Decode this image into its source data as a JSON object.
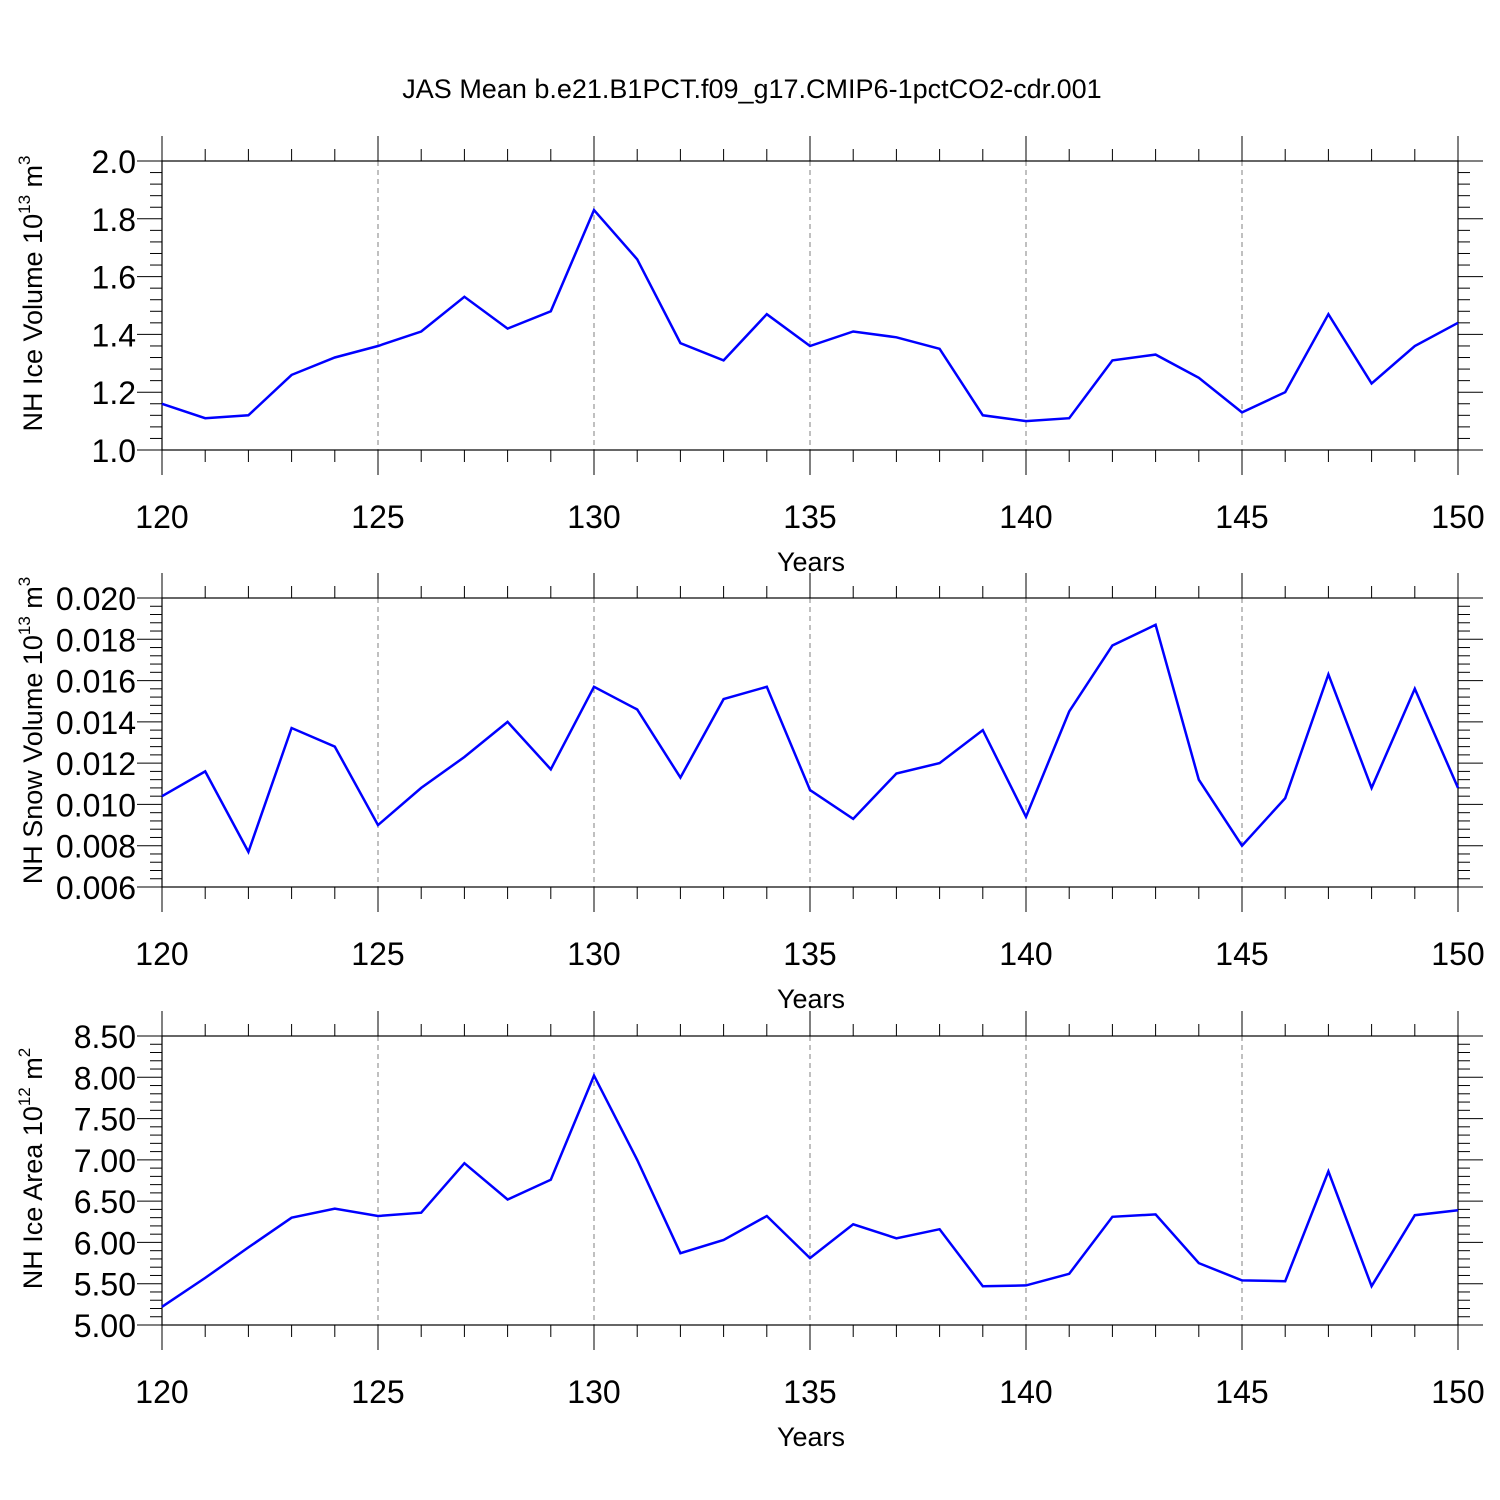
{
  "figure": {
    "title": "JAS Mean b.e21.B1PCT.f09_g17.CMIP6-1pctCO2-cdr.001"
  },
  "colors": {
    "line": "#0000ff",
    "axis": "#000000",
    "grid": "#808080"
  },
  "chart_data": [
    {
      "type": "line",
      "ylabel": {
        "base": "NH Ice Volume 10",
        "exp": "13",
        "unit": " m",
        "unit_exp": "3"
      },
      "xlabel": "Years",
      "xlim": [
        120,
        150
      ],
      "ylim": [
        1.0,
        2.0
      ],
      "x_ticks": [
        "120",
        "125",
        "130",
        "135",
        "140",
        "145",
        "150"
      ],
      "y_ticks": [
        "1.0",
        "1.2",
        "1.4",
        "1.6",
        "1.8",
        "2.0"
      ],
      "x_gridlines": [
        125,
        130,
        135,
        140,
        145
      ],
      "series": [
        {
          "x": [
            120,
            121,
            122,
            123,
            124,
            125,
            126,
            127,
            128,
            129,
            130,
            131,
            132,
            133,
            134,
            135,
            136,
            137,
            138,
            139,
            140,
            141,
            142,
            143,
            144,
            145,
            146,
            147,
            148,
            149,
            150
          ],
          "values": [
            1.16,
            1.11,
            1.12,
            1.26,
            1.32,
            1.36,
            1.41,
            1.53,
            1.42,
            1.48,
            1.83,
            1.66,
            1.37,
            1.31,
            1.47,
            1.36,
            1.41,
            1.39,
            1.35,
            1.12,
            1.1,
            1.11,
            1.31,
            1.33,
            1.25,
            1.13,
            1.2,
            1.47,
            1.23,
            1.36,
            1.44
          ]
        }
      ]
    },
    {
      "type": "line",
      "ylabel": {
        "base": "NH Snow Volume 10",
        "exp": "13",
        "unit": " m",
        "unit_exp": "3"
      },
      "xlabel": "Years",
      "xlim": [
        120,
        150
      ],
      "ylim": [
        0.006,
        0.02
      ],
      "x_ticks": [
        "120",
        "125",
        "130",
        "135",
        "140",
        "145",
        "150"
      ],
      "y_ticks": [
        "0.006",
        "0.008",
        "0.010",
        "0.012",
        "0.014",
        "0.016",
        "0.018",
        "0.020"
      ],
      "x_gridlines": [
        125,
        130,
        135,
        140,
        145
      ],
      "series": [
        {
          "x": [
            120,
            121,
            122,
            123,
            124,
            125,
            126,
            127,
            128,
            129,
            130,
            131,
            132,
            133,
            134,
            135,
            136,
            137,
            138,
            139,
            140,
            141,
            142,
            143,
            144,
            145,
            146,
            147,
            148,
            149,
            150
          ],
          "values": [
            0.0104,
            0.0116,
            0.0077,
            0.0137,
            0.0128,
            0.009,
            0.0108,
            0.0123,
            0.014,
            0.0117,
            0.0157,
            0.0146,
            0.0113,
            0.0151,
            0.0157,
            0.0107,
            0.0093,
            0.0115,
            0.012,
            0.0136,
            0.0094,
            0.0145,
            0.0177,
            0.0187,
            0.0112,
            0.008,
            0.0103,
            0.0163,
            0.0108,
            0.0156,
            0.0108
          ]
        }
      ]
    },
    {
      "type": "line",
      "ylabel": {
        "base": "NH Ice Area 10",
        "exp": "12",
        "unit": " m",
        "unit_exp": "2"
      },
      "xlabel": "Years",
      "xlim": [
        120,
        150
      ],
      "ylim": [
        5.0,
        8.5
      ],
      "x_ticks": [
        "120",
        "125",
        "130",
        "135",
        "140",
        "145",
        "150"
      ],
      "y_ticks": [
        "5.00",
        "5.50",
        "6.00",
        "6.50",
        "7.00",
        "7.50",
        "8.00",
        "8.50"
      ],
      "x_gridlines": [
        125,
        130,
        135,
        140,
        145
      ],
      "series": [
        {
          "x": [
            120,
            121,
            122,
            123,
            124,
            125,
            126,
            127,
            128,
            129,
            130,
            131,
            132,
            133,
            134,
            135,
            136,
            137,
            138,
            139,
            140,
            141,
            142,
            143,
            144,
            145,
            146,
            147,
            148,
            149,
            150
          ],
          "values": [
            5.22,
            5.57,
            5.94,
            6.3,
            6.41,
            6.32,
            6.36,
            6.96,
            6.52,
            6.76,
            8.02,
            7.0,
            5.87,
            6.03,
            6.32,
            5.81,
            6.22,
            6.05,
            6.16,
            5.47,
            5.48,
            5.62,
            6.31,
            6.34,
            5.75,
            5.54,
            5.53,
            6.86,
            5.47,
            6.33,
            6.39
          ]
        }
      ]
    }
  ]
}
